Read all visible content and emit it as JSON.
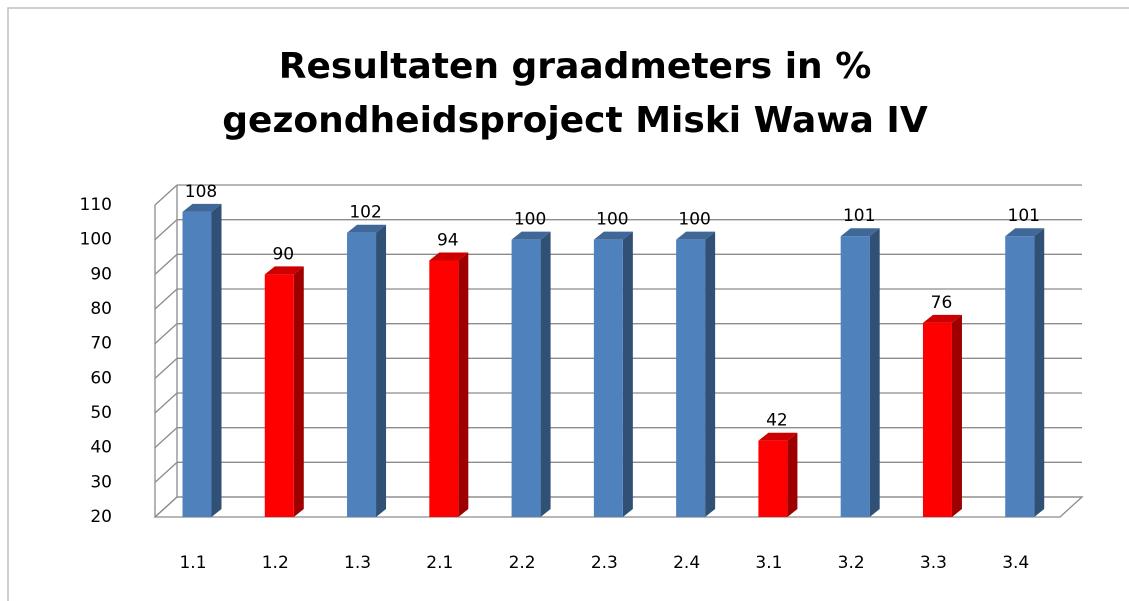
{
  "chart_data": {
    "type": "bar3d",
    "title": [
      "Resultaten graadmeters in %",
      "gezondheidsproject Miski Wawa IV"
    ],
    "categories": [
      "1.1",
      "1.2",
      "1.3",
      "2.1",
      "2.2",
      "2.3",
      "2.4",
      "3.1",
      "3.2",
      "3.3",
      "3.4"
    ],
    "values": [
      108,
      90,
      102,
      94,
      100,
      100,
      100,
      42,
      101,
      76,
      101
    ],
    "colors": [
      "#4f81bd",
      "#ff0000",
      "#4f81bd",
      "#ff0000",
      "#4f81bd",
      "#4f81bd",
      "#4f81bd",
      "#ff0000",
      "#4f81bd",
      "#ff0000",
      "#4f81bd"
    ],
    "ylim": [
      20,
      110
    ],
    "yticks": [
      20,
      30,
      40,
      50,
      60,
      70,
      80,
      90,
      100,
      110
    ],
    "grid": true
  }
}
